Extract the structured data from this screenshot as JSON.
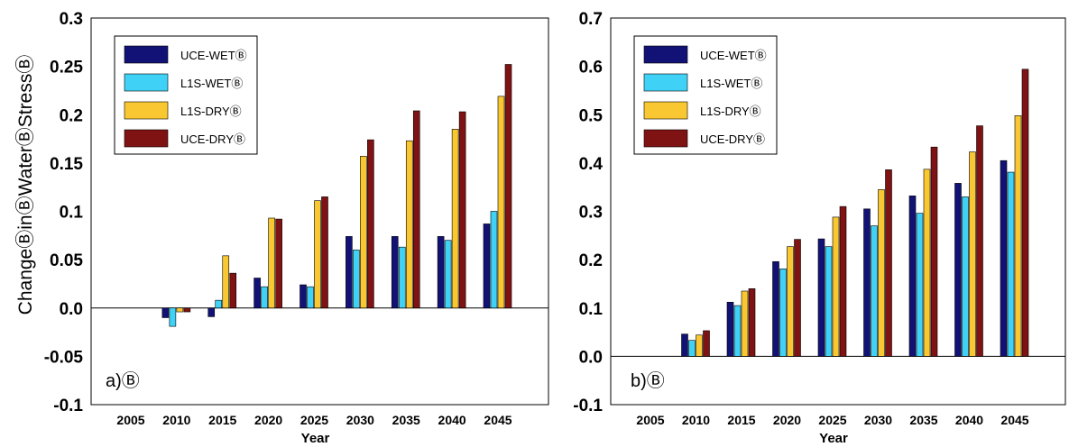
{
  "ylabel": "ChangeⒷinⒷWaterⒷStressⒷ",
  "colors": {
    "UCE-WET": "#121276",
    "L1S-WET": "#3fd2f6",
    "L1S-DRY": "#f8c731",
    "UCE-DRY": "#7f1212"
  },
  "chart_data": [
    {
      "type": "bar",
      "panel_label": "a)Ⓑ",
      "xlabel": "Year",
      "ylim": [
        -0.1,
        0.3
      ],
      "yticks": [
        "0.3",
        "0.25",
        "0.2",
        "0.15",
        "0.1",
        "0.05",
        "0.0",
        "-0.05",
        "-0.1"
      ],
      "ytick_values": [
        0.3,
        0.25,
        0.2,
        0.15,
        0.1,
        0.05,
        0.0,
        -0.05,
        -0.1
      ],
      "categories": [
        "2005",
        "2010",
        "2015",
        "2020",
        "2025",
        "2030",
        "2035",
        "2040",
        "2045"
      ],
      "series": [
        {
          "name": "UCE-WETⒷ",
          "key": "UCE-WET",
          "values": [
            0,
            -0.01,
            -0.009,
            0.031,
            0.024,
            0.074,
            0.074,
            0.074,
            0.087
          ]
        },
        {
          "name": "L1S-WETⒷ",
          "key": "L1S-WET",
          "values": [
            0,
            -0.019,
            0.008,
            0.022,
            0.022,
            0.06,
            0.063,
            0.07,
            0.1
          ]
        },
        {
          "name": "L1S-DRYⒷ",
          "key": "L1S-DRY",
          "values": [
            0,
            -0.004,
            0.054,
            0.093,
            0.111,
            0.157,
            0.173,
            0.185,
            0.219
          ]
        },
        {
          "name": "UCE-DRYⒷ",
          "key": "UCE-DRY",
          "values": [
            0,
            -0.004,
            0.036,
            0.092,
            0.115,
            0.174,
            0.204,
            0.203,
            0.252
          ]
        }
      ]
    },
    {
      "type": "bar",
      "panel_label": "b)Ⓑ",
      "xlabel": "Year",
      "ylim": [
        -0.1,
        0.7
      ],
      "yticks": [
        "0.7",
        "0.6",
        "0.5",
        "0.4",
        "0.3",
        "0.2",
        "0.1",
        "0.0",
        "-0.1"
      ],
      "ytick_values": [
        0.7,
        0.6,
        0.5,
        0.4,
        0.3,
        0.2,
        0.1,
        0.0,
        -0.1
      ],
      "categories": [
        "2005",
        "2010",
        "2015",
        "2020",
        "2025",
        "2030",
        "2035",
        "2040",
        "2045"
      ],
      "series": [
        {
          "name": "UCE-WETⒷ",
          "key": "UCE-WET",
          "values": [
            0,
            0.046,
            0.112,
            0.196,
            0.243,
            0.305,
            0.332,
            0.358,
            0.405
          ]
        },
        {
          "name": "L1S-WETⒷ",
          "key": "L1S-WET",
          "values": [
            0,
            0.033,
            0.105,
            0.181,
            0.227,
            0.27,
            0.296,
            0.33,
            0.381
          ]
        },
        {
          "name": "L1S-DRYⒷ",
          "key": "L1S-DRY",
          "values": [
            0,
            0.044,
            0.135,
            0.227,
            0.288,
            0.345,
            0.387,
            0.423,
            0.498
          ]
        },
        {
          "name": "UCE-DRYⒷ",
          "key": "UCE-DRY",
          "values": [
            0,
            0.053,
            0.14,
            0.242,
            0.31,
            0.386,
            0.433,
            0.477,
            0.594
          ]
        }
      ]
    }
  ]
}
